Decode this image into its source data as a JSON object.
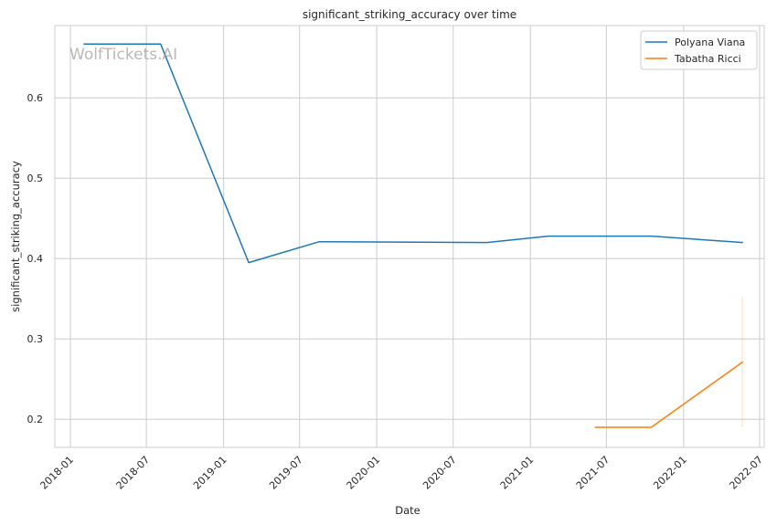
{
  "chart_data": {
    "type": "line",
    "title": "significant_striking_accuracy over time",
    "xlabel": "Date",
    "ylabel": "significant_striking_accuracy",
    "watermark": "WolfTickets.AI",
    "x_ticks": [
      "2018-01",
      "2018-07",
      "2019-01",
      "2019-07",
      "2020-01",
      "2020-07",
      "2021-01",
      "2021-07",
      "2022-01",
      "2022-07"
    ],
    "y_ticks": [
      "0.2",
      "0.3",
      "0.4",
      "0.5",
      "0.6"
    ],
    "xlim": [
      "2017-11-25",
      "2022-07-12"
    ],
    "ylim": [
      0.165,
      0.69
    ],
    "grid": true,
    "legend_position": "top-right",
    "series": [
      {
        "name": "Polyana Viana",
        "color": "#1f77b4",
        "points": [
          {
            "x": "2018-02-03",
            "y": 0.667
          },
          {
            "x": "2018-08-04",
            "y": 0.667
          },
          {
            "x": "2019-03-02",
            "y": 0.395
          },
          {
            "x": "2019-08-17",
            "y": 0.421
          },
          {
            "x": "2020-09-19",
            "y": 0.42
          },
          {
            "x": "2021-02-13",
            "y": 0.428
          },
          {
            "x": "2021-10-16",
            "y": 0.428
          },
          {
            "x": "2022-05-21",
            "y": 0.42
          }
        ]
      },
      {
        "name": "Tabatha Ricci",
        "color": "#ff7f0e",
        "points": [
          {
            "x": "2021-06-05",
            "y": 0.19
          },
          {
            "x": "2021-10-16",
            "y": 0.19
          },
          {
            "x": "2022-05-21",
            "y": 0.271
          }
        ],
        "band": {
          "x": "2022-05-21",
          "low": 0.19,
          "high": 0.352
        }
      }
    ]
  }
}
